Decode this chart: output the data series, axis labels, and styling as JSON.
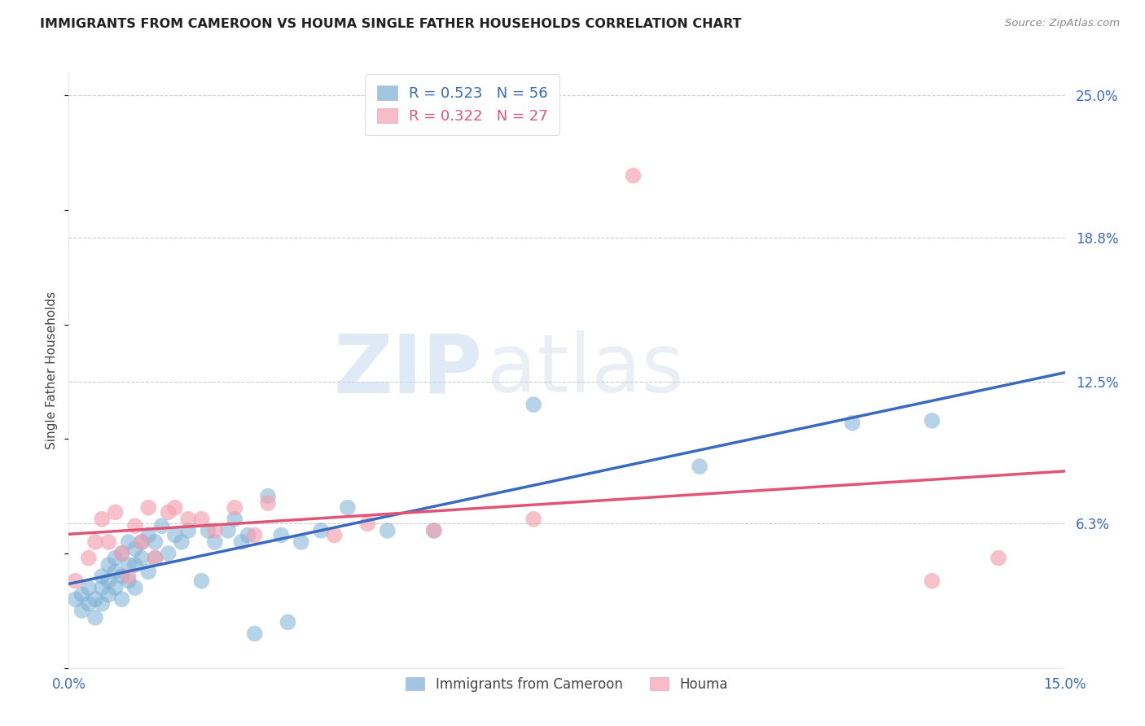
{
  "title": "IMMIGRANTS FROM CAMEROON VS HOUMA SINGLE FATHER HOUSEHOLDS CORRELATION CHART",
  "source": "Source: ZipAtlas.com",
  "ylabel": "Single Father Households",
  "xlim": [
    0.0,
    0.15
  ],
  "ylim": [
    0.0,
    0.26
  ],
  "ytick_labels_right": [
    "6.3%",
    "12.5%",
    "18.8%",
    "25.0%"
  ],
  "ytick_positions_right": [
    0.063,
    0.125,
    0.188,
    0.25
  ],
  "grid_color": "#cccccc",
  "background_color": "#ffffff",
  "blue_color": "#7bafd4",
  "pink_color": "#f4a0b0",
  "blue_line_color": "#3a6abf",
  "pink_line_color": "#e05575",
  "blue_R": "0.523",
  "blue_N": "56",
  "pink_R": "0.322",
  "pink_N": "27",
  "legend_label_blue": "Immigrants from Cameroon",
  "legend_label_pink": "Houma",
  "watermark_zip": "ZIP",
  "watermark_atlas": "atlas",
  "blue_scatter_x": [
    0.001,
    0.002,
    0.002,
    0.003,
    0.003,
    0.004,
    0.004,
    0.005,
    0.005,
    0.005,
    0.006,
    0.006,
    0.006,
    0.007,
    0.007,
    0.007,
    0.008,
    0.008,
    0.008,
    0.009,
    0.009,
    0.009,
    0.01,
    0.01,
    0.01,
    0.011,
    0.011,
    0.012,
    0.012,
    0.013,
    0.013,
    0.014,
    0.015,
    0.016,
    0.017,
    0.018,
    0.02,
    0.021,
    0.022,
    0.024,
    0.025,
    0.026,
    0.027,
    0.028,
    0.03,
    0.032,
    0.033,
    0.035,
    0.038,
    0.042,
    0.048,
    0.055,
    0.07,
    0.095,
    0.118,
    0.13
  ],
  "blue_scatter_y": [
    0.03,
    0.032,
    0.025,
    0.028,
    0.035,
    0.03,
    0.022,
    0.035,
    0.04,
    0.028,
    0.038,
    0.032,
    0.045,
    0.042,
    0.035,
    0.048,
    0.04,
    0.05,
    0.03,
    0.045,
    0.055,
    0.038,
    0.052,
    0.045,
    0.035,
    0.055,
    0.048,
    0.058,
    0.042,
    0.055,
    0.048,
    0.062,
    0.05,
    0.058,
    0.055,
    0.06,
    0.038,
    0.06,
    0.055,
    0.06,
    0.065,
    0.055,
    0.058,
    0.015,
    0.075,
    0.058,
    0.02,
    0.055,
    0.06,
    0.07,
    0.06,
    0.06,
    0.115,
    0.088,
    0.107,
    0.108
  ],
  "pink_scatter_x": [
    0.001,
    0.003,
    0.004,
    0.005,
    0.006,
    0.007,
    0.008,
    0.009,
    0.01,
    0.011,
    0.012,
    0.013,
    0.015,
    0.016,
    0.018,
    0.02,
    0.022,
    0.025,
    0.028,
    0.03,
    0.04,
    0.045,
    0.055,
    0.07,
    0.085,
    0.13,
    0.14
  ],
  "pink_scatter_y": [
    0.038,
    0.048,
    0.055,
    0.065,
    0.055,
    0.068,
    0.05,
    0.04,
    0.062,
    0.055,
    0.07,
    0.048,
    0.068,
    0.07,
    0.065,
    0.065,
    0.06,
    0.07,
    0.058,
    0.072,
    0.058,
    0.063,
    0.06,
    0.065,
    0.215,
    0.038,
    0.048
  ]
}
